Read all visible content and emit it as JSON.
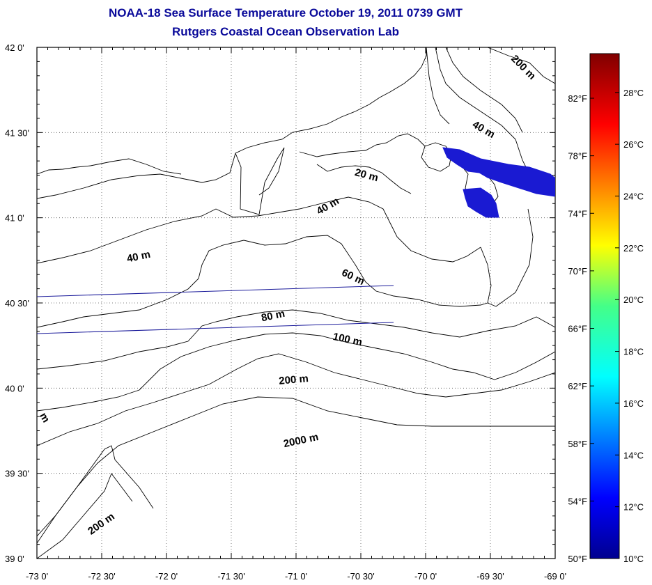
{
  "header": {
    "title_line1": "NOAA-18 Sea Surface Temperature October 19, 2011 0739 GMT",
    "title_line2": "Rutgers Coastal Ocean Observation Lab"
  },
  "map": {
    "lat_labels": [
      "42 0'",
      "41 30'",
      "41 0'",
      "40 30'",
      "40 0'",
      "39 30'",
      "39 0'"
    ],
    "lon_labels": [
      "-73 0'",
      "-72 30'",
      "-72 0'",
      "-71 30'",
      "-71 0'",
      "-70 30'",
      "-70 0'",
      "-69 30'",
      "-69 0'"
    ],
    "contour_labels": [
      "200 m",
      "40 m",
      "20 m",
      "40 m",
      "40 m",
      "60 m",
      "80 m",
      "100 m",
      "200 m",
      "2000 m",
      "200 m",
      "m"
    ],
    "land_fill": "#ffffff",
    "line_color": "#000000",
    "sst_patch_color": "#1a1ad2"
  },
  "colorbar": {
    "fahrenheit_labels": [
      "82°F",
      "78°F",
      "74°F",
      "70°F",
      "66°F",
      "62°F",
      "58°F",
      "54°F",
      "50°F"
    ],
    "celsius_labels": [
      "28°C",
      "26°C",
      "24°C",
      "22°C",
      "20°C",
      "18°C",
      "16°C",
      "14°C",
      "12°C",
      "10°C"
    ],
    "colormap": "jet",
    "min_c": 10,
    "max_c": 29.5
  }
}
